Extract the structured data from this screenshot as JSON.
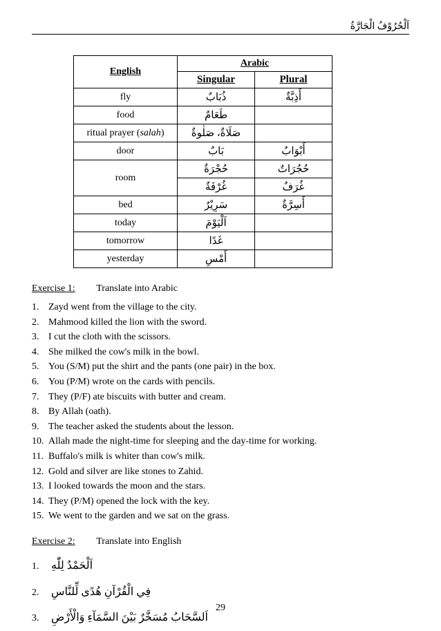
{
  "header": {
    "arabic_title": "اَلْحُرُوْفُ الْجَارَّةُ"
  },
  "table": {
    "headers": {
      "english": "English",
      "arabic": "Arabic",
      "singular": "Singular",
      "plural": "Plural"
    },
    "rows": [
      {
        "english": "fly",
        "singular": "ذُبَابٌ",
        "plural": "أَذِبَّةٌ",
        "rowspan": 1
      },
      {
        "english": "food",
        "singular": "طَعَامٌ",
        "plural": "",
        "rowspan": 1
      },
      {
        "english": "ritual prayer (salah)",
        "singular": "صَلَاةٌ، صَلٰوةٌ",
        "plural": "",
        "rowspan": 1
      },
      {
        "english": "door",
        "singular": "بَابٌ",
        "plural": "أَبْوَابٌ",
        "rowspan": 1
      },
      {
        "english": "room",
        "singular": "حُجْرَةٌ",
        "plural": "حُجُرَاتٌ",
        "rowspan": 2
      },
      {
        "english": "",
        "singular": "غُرْفَةٌ",
        "plural": "غُرَفٌ",
        "rowspan": 0
      },
      {
        "english": "bed",
        "singular": "سَرِيْرٌ",
        "plural": "أَسِرَّةٌ",
        "rowspan": 1
      },
      {
        "english": "today",
        "singular": "اَلْيَوْمَ",
        "plural": "",
        "rowspan": 1
      },
      {
        "english": "tomorrow",
        "singular": "غَدًا",
        "plural": "",
        "rowspan": 1
      },
      {
        "english": "yesterday",
        "singular": "أَمْسِ",
        "plural": "",
        "rowspan": 1
      }
    ]
  },
  "exercise1": {
    "label": "Exercise 1:",
    "instruction": "Translate into Arabic",
    "items": [
      "Zayd went from the village to the city.",
      "Mahmood killed the lion with the sword.",
      "I cut the cloth with the scissors.",
      "She milked the cow's milk in the bowl.",
      "You (S/M) put the shirt and the pants (one pair) in the box.",
      "You (P/M) wrote on the cards with pencils.",
      "They (P/F) ate biscuits with butter and cream.",
      "By Allah (oath).",
      "The teacher asked the students about the lesson.",
      "Allah made the night-time for sleeping and the day-time for working.",
      "Buffalo's milk is whiter than cow's milk.",
      "Gold and silver are like stones to Zahid.",
      "I looked towards the moon and the stars.",
      "They (P/M) opened the lock with the key.",
      "We went to the garden and we sat on the grass."
    ]
  },
  "exercise2": {
    "label": "Exercise 2:",
    "instruction": "Translate into English",
    "items": [
      "اَلْحَمْدُ لِلّٰهِ",
      "فِي الْقُرْآنِ هُدًى لِّلنَّاسِ",
      "اَلسَّحَابُ مُسَخَّرٌ بَيْنَ السَّمَآءِ وَالْأَرْضِ"
    ]
  },
  "page_number": "29"
}
